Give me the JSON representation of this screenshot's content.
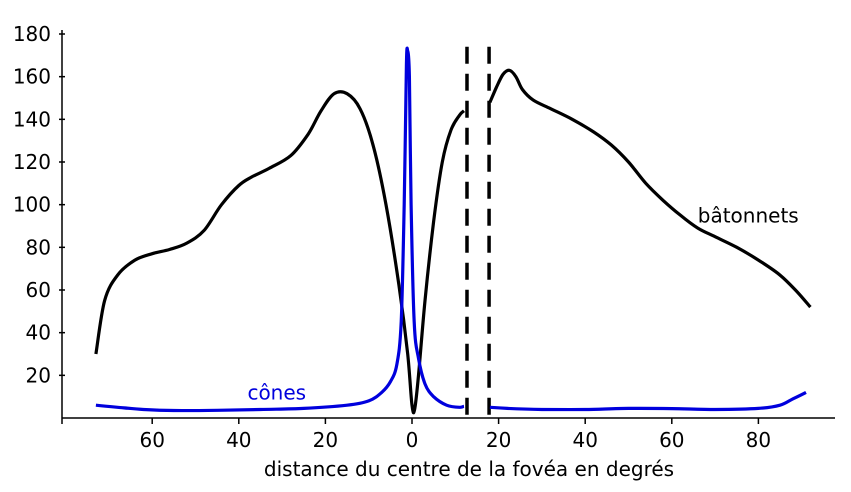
{
  "chart_data": {
    "type": "line",
    "title": "",
    "xlabel": "distance du centre de la fovéa en degrés",
    "ylabel": "",
    "xlim": [
      -75,
      92
    ],
    "ylim": [
      0,
      180
    ],
    "grid": false,
    "x_ticks": [
      {
        "value": -60,
        "label": "60"
      },
      {
        "value": -40,
        "label": "40"
      },
      {
        "value": -20,
        "label": "20"
      },
      {
        "value": 0,
        "label": "0"
      },
      {
        "value": 20,
        "label": "20"
      },
      {
        "value": 40,
        "label": "40"
      },
      {
        "value": 60,
        "label": "60"
      },
      {
        "value": 80,
        "label": "80"
      }
    ],
    "y_ticks": [
      {
        "value": 20,
        "label": "20"
      },
      {
        "value": 40,
        "label": "40"
      },
      {
        "value": 60,
        "label": "60"
      },
      {
        "value": 80,
        "label": "80"
      },
      {
        "value": 100,
        "label": "100"
      },
      {
        "value": 120,
        "label": "120"
      },
      {
        "value": 140,
        "label": "140"
      },
      {
        "value": 160,
        "label": "160"
      },
      {
        "value": 180,
        "label": "180"
      }
    ],
    "blind_spot_lines": [
      12.7,
      17.8
    ],
    "series": [
      {
        "name": "bâtonnets",
        "color": "#000000",
        "segments": [
          [
            [
              -73,
              30
            ],
            [
              -71,
              55
            ],
            [
              -68,
              67
            ],
            [
              -64,
              74
            ],
            [
              -60,
              77
            ],
            [
              -56,
              79
            ],
            [
              -52,
              82
            ],
            [
              -48,
              88
            ],
            [
              -44,
              100
            ],
            [
              -40,
              109
            ],
            [
              -37,
              113
            ],
            [
              -33,
              117
            ],
            [
              -28,
              123
            ],
            [
              -24,
              133
            ],
            [
              -21,
              144
            ],
            [
              -18,
              152
            ],
            [
              -15,
              152
            ],
            [
              -12,
              145
            ],
            [
              -9,
              128
            ],
            [
              -6,
              100
            ],
            [
              -3,
              62
            ],
            [
              -1,
              30
            ],
            [
              0,
              6
            ],
            [
              0.6,
              4
            ],
            [
              1.5,
              20
            ],
            [
              3,
              55
            ],
            [
              5,
              92
            ],
            [
              7,
              120
            ],
            [
              9,
              135
            ],
            [
              11,
              142
            ],
            [
              12,
              144
            ]
          ],
          [
            [
              18,
              148
            ],
            [
              19.5,
              155
            ],
            [
              21,
              161
            ],
            [
              22.5,
              163
            ],
            [
              24,
              160
            ],
            [
              25.5,
              154
            ],
            [
              28,
              149
            ],
            [
              32,
              145
            ],
            [
              37,
              140
            ],
            [
              42,
              134
            ],
            [
              46,
              128
            ],
            [
              50,
              120
            ],
            [
              54,
              110
            ],
            [
              58,
              102
            ],
            [
              62,
              95
            ],
            [
              66,
              89
            ],
            [
              70,
              85
            ],
            [
              75,
              80
            ],
            [
              80,
              74
            ],
            [
              85,
              67
            ],
            [
              89,
              59
            ],
            [
              92,
              52
            ]
          ]
        ]
      },
      {
        "name": "cônes",
        "color": "#0000dd",
        "segments": [
          [
            [
              -73,
              6
            ],
            [
              -68,
              5
            ],
            [
              -62,
              4
            ],
            [
              -55,
              3.5
            ],
            [
              -45,
              3.6
            ],
            [
              -35,
              4
            ],
            [
              -25,
              4.5
            ],
            [
              -15,
              6
            ],
            [
              -10,
              8
            ],
            [
              -7,
              12
            ],
            [
              -5,
              17
            ],
            [
              -3.5,
              25
            ],
            [
              -2.5,
              45
            ],
            [
              -1.8,
              100
            ],
            [
              -1.3,
              165
            ],
            [
              -1,
              172
            ],
            [
              -0.6,
              160
            ],
            [
              -0.2,
              100
            ],
            [
              0.5,
              45
            ],
            [
              1.5,
              28
            ],
            [
              3,
              16
            ],
            [
              5,
              10
            ],
            [
              8,
              6
            ],
            [
              11,
              5
            ],
            [
              12,
              5.5
            ]
          ],
          [
            [
              18,
              5
            ],
            [
              22,
              4.5
            ],
            [
              30,
              4
            ],
            [
              40,
              4
            ],
            [
              50,
              4.5
            ],
            [
              60,
              4.4
            ],
            [
              70,
              4
            ],
            [
              80,
              4.5
            ],
            [
              85,
              6
            ],
            [
              88,
              9
            ],
            [
              91,
              12
            ]
          ]
        ]
      }
    ],
    "annotations": {
      "rods": {
        "text": "bâtonnets",
        "x": 66,
        "y": 95,
        "color": "#000000"
      },
      "cones": {
        "text": "cônes",
        "x": -38,
        "y": 12,
        "color": "#0000dd"
      }
    }
  }
}
